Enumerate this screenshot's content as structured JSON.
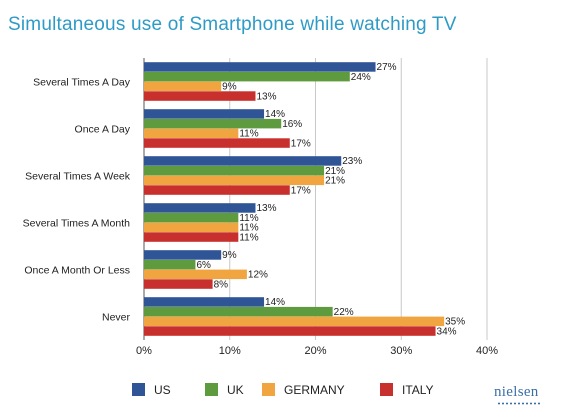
{
  "header": {
    "title": "Simultaneous use of Smartphone while watching TV"
  },
  "brand": {
    "logo_text": "nielsen"
  },
  "chart_data": {
    "type": "bar",
    "orientation": "horizontal",
    "title": "Simultaneous use of Smartphone while watching TV",
    "categories": [
      "Several Times A Day",
      "Once A Day",
      "Several Times A Week",
      "Several Times A Month",
      "Once A Month Or Less",
      "Never"
    ],
    "series": [
      {
        "name": "US",
        "color": "#2f5597",
        "values": [
          27,
          14,
          23,
          13,
          9,
          14
        ]
      },
      {
        "name": "UK",
        "color": "#5e9a3e",
        "values": [
          24,
          16,
          21,
          11,
          6,
          22
        ]
      },
      {
        "name": "GERMANY",
        "color": "#f0a540",
        "values": [
          9,
          11,
          21,
          11,
          12,
          35
        ]
      },
      {
        "name": "ITALY",
        "color": "#c8302e",
        "values": [
          13,
          17,
          17,
          11,
          8,
          34
        ]
      }
    ],
    "value_suffix": "%",
    "xlim": [
      0,
      40
    ],
    "xticks": [
      0,
      10,
      20,
      30,
      40
    ],
    "xtick_labels": [
      "0%",
      "10%",
      "20%",
      "30%",
      "40%"
    ],
    "grid": true,
    "legend_position": "bottom"
  }
}
